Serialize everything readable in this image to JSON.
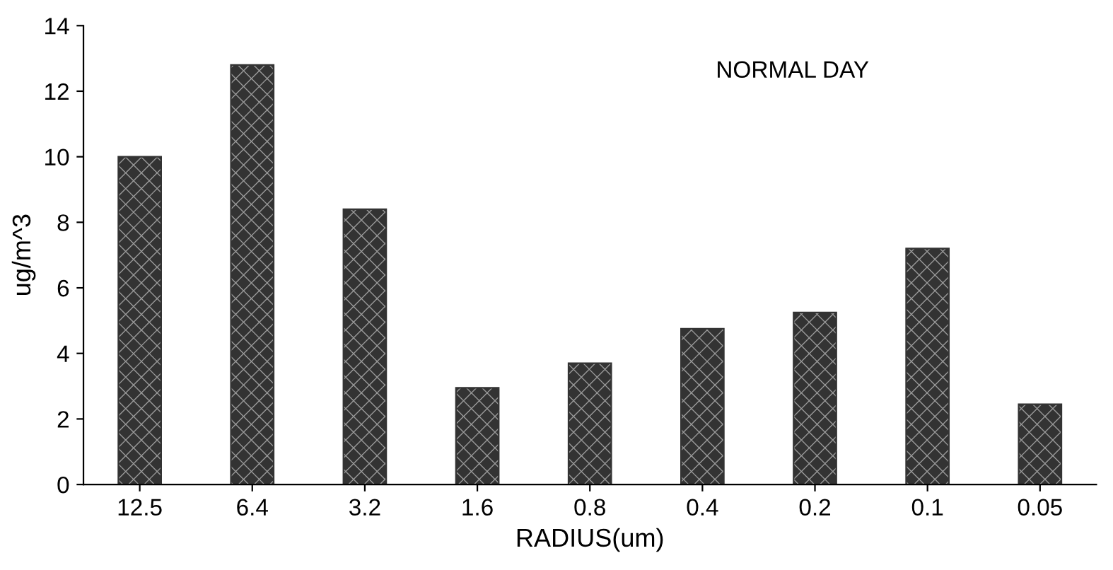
{
  "chart_data": {
    "type": "bar",
    "xlabel": "RADIUS(um)",
    "ylabel": "ug/m^3",
    "categories": [
      "12.5",
      "6.4",
      "3.2",
      "1.6",
      "0.8",
      "0.4",
      "0.2",
      "0.1",
      "0.05"
    ],
    "values": [
      10,
      12.8,
      8.4,
      2.95,
      3.7,
      4.75,
      5.25,
      7.2,
      2.45
    ],
    "color": "#333333",
    "ylim": [
      0,
      14
    ],
    "yticks": [
      0,
      2,
      4,
      6,
      8,
      10,
      12,
      14
    ],
    "annotations": [
      "NORMAL DAY"
    ]
  }
}
